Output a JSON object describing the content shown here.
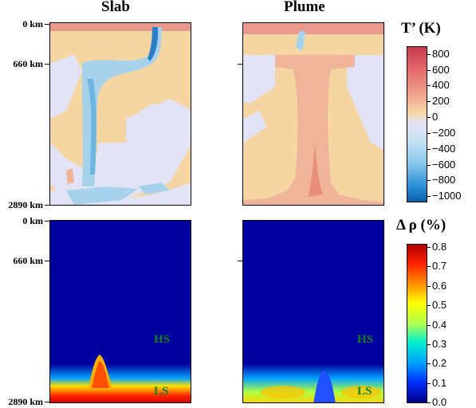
{
  "titles": {
    "slab": "Slab",
    "plume": "Plume"
  },
  "depth_labels": {
    "top": "0 km",
    "mid": "660 km",
    "bottom": "2890 km"
  },
  "colorbars": {
    "temperature": {
      "title": "T’ (K)",
      "labels": [
        "800",
        "600",
        "400",
        "200",
        "0",
        "−200",
        "−400",
        "−600",
        "−800",
        "−1000"
      ]
    },
    "density": {
      "title": "Δ ρ (%)",
      "labels": [
        "0.8",
        "0.7",
        "0.6",
        "0.5",
        "0.4",
        "0.3",
        "0.2",
        "0.1",
        "0.0"
      ]
    }
  },
  "phase_labels": {
    "high_spin": "HS",
    "low_spin": "LS"
  },
  "colors": {
    "background_tan": "#f5d6a2",
    "background_lavender": "#e3e3f7",
    "slab_blue": "#7fc0e0",
    "plume_orange": "#f0a682",
    "density_blue": "#0000a0",
    "phase_label_green": "#1a7f1a"
  }
}
